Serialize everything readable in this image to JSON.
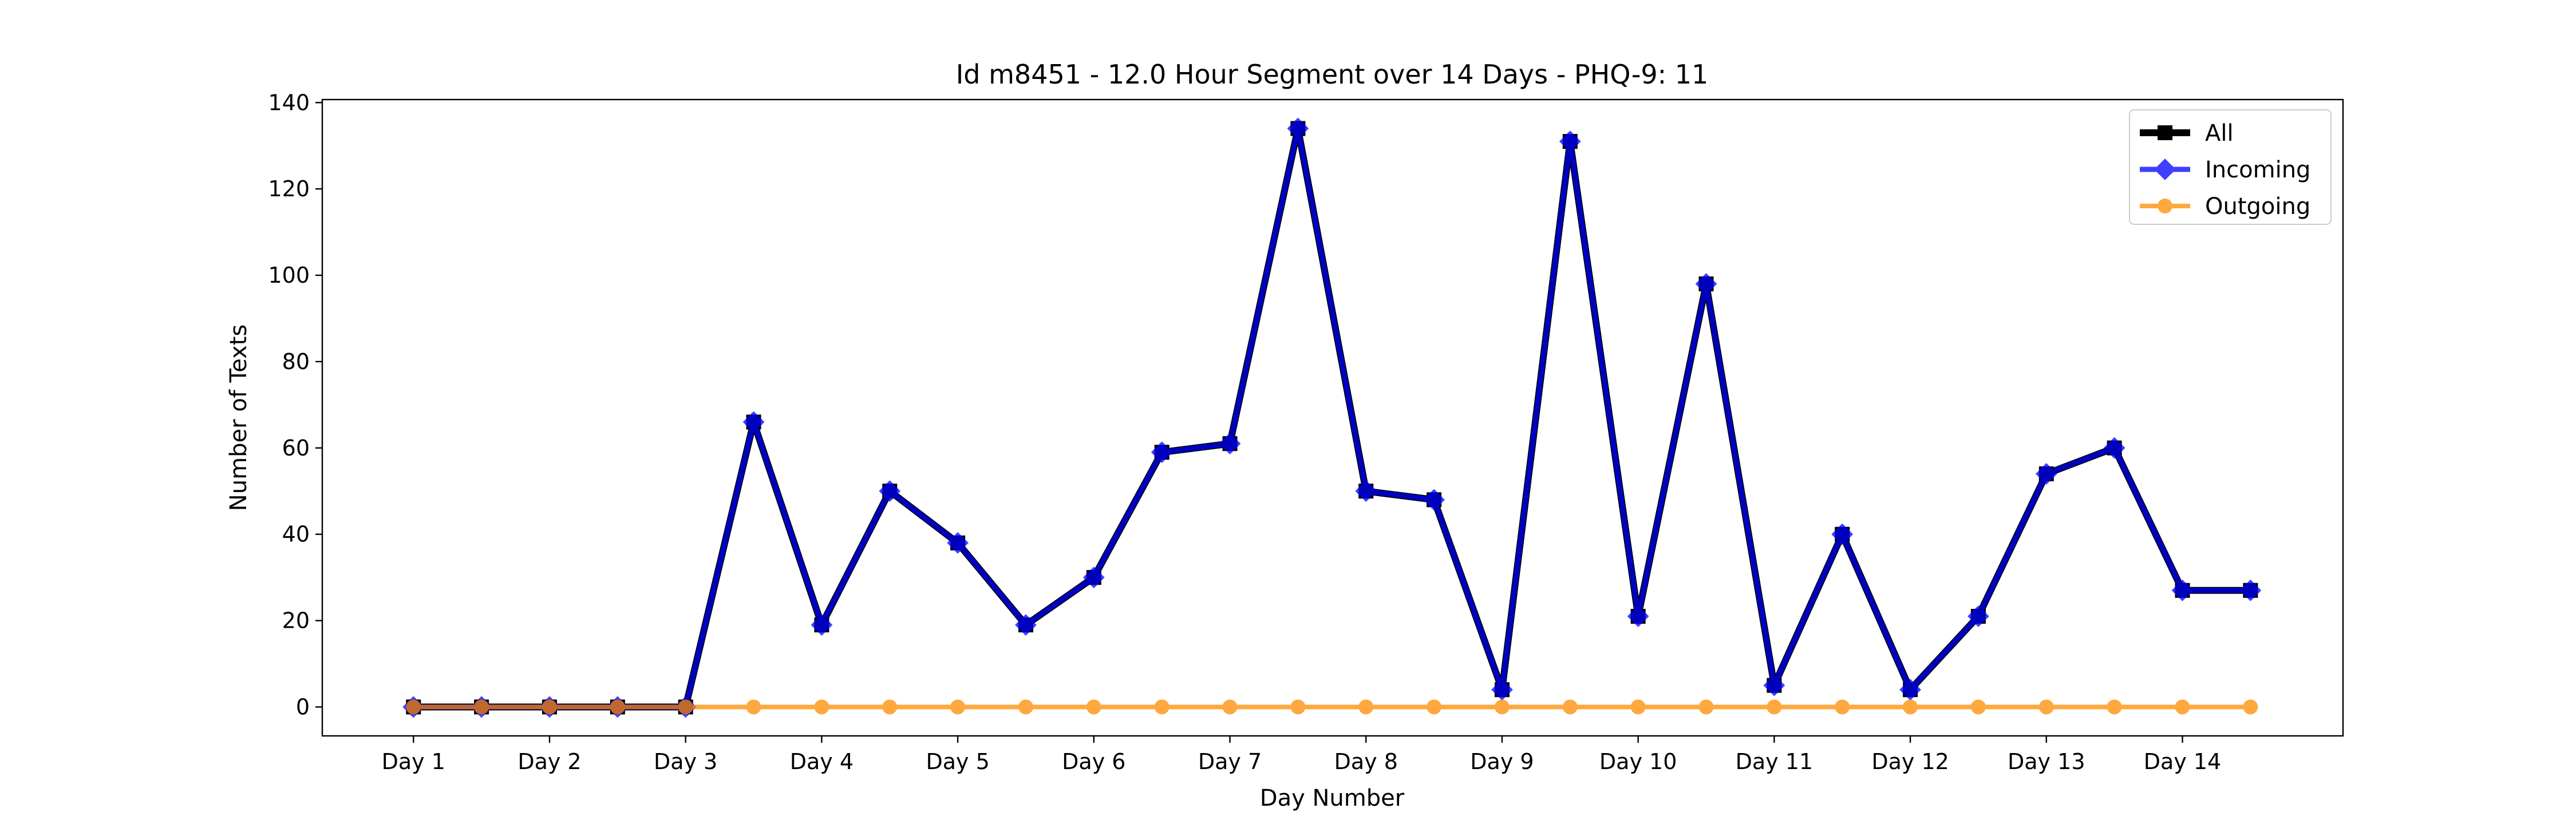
{
  "chart_data": {
    "type": "line",
    "title": "Id m8451 - 12.0 Hour Segment over 14 Days - PHQ-9: 11",
    "xlabel": "Day Number",
    "ylabel": "Number of Texts",
    "x_tick_labels": [
      "Day 1",
      "Day 2",
      "Day 3",
      "Day 4",
      "Day 5",
      "Day 6",
      "Day 7",
      "Day 8",
      "Day 9",
      "Day 10",
      "Day 11",
      "Day 12",
      "Day 13",
      "Day 14"
    ],
    "x": [
      1,
      1.5,
      2,
      2.5,
      3,
      3.5,
      4,
      4.5,
      5,
      5.5,
      6,
      6.5,
      7,
      7.5,
      8,
      8.5,
      9,
      9.5,
      10,
      10.5,
      11,
      11.5,
      12,
      12.5,
      13,
      13.5,
      14,
      14.5
    ],
    "xlim": [
      0.33,
      15.18
    ],
    "ylim": [
      -6.7,
      140.7
    ],
    "y_ticks": [
      0,
      20,
      40,
      60,
      80,
      100,
      120,
      140
    ],
    "grid": false,
    "legend_position": "top-right",
    "series": [
      {
        "name": "All",
        "color": "#000000",
        "marker": "square",
        "values": [
          0,
          0,
          0,
          0,
          0,
          66,
          19,
          50,
          38,
          19,
          30,
          59,
          61,
          134,
          50,
          48,
          4,
          131,
          21,
          98,
          5,
          40,
          4,
          21,
          54,
          60,
          27,
          27
        ]
      },
      {
        "name": "Incoming",
        "color": "#0000ff",
        "marker": "diamond",
        "values": [
          0,
          0,
          0,
          0,
          0,
          66,
          19,
          50,
          38,
          19,
          30,
          59,
          61,
          134,
          50,
          48,
          4,
          131,
          21,
          98,
          5,
          40,
          4,
          21,
          54,
          60,
          27,
          27
        ]
      },
      {
        "name": "Outgoing",
        "color": "#ff8c00",
        "marker": "circle",
        "values": [
          0,
          0,
          0,
          0,
          0,
          0,
          0,
          0,
          0,
          0,
          0,
          0,
          0,
          0,
          0,
          0,
          0,
          0,
          0,
          0,
          0,
          0,
          0,
          0,
          0,
          0,
          0,
          0
        ]
      }
    ]
  }
}
